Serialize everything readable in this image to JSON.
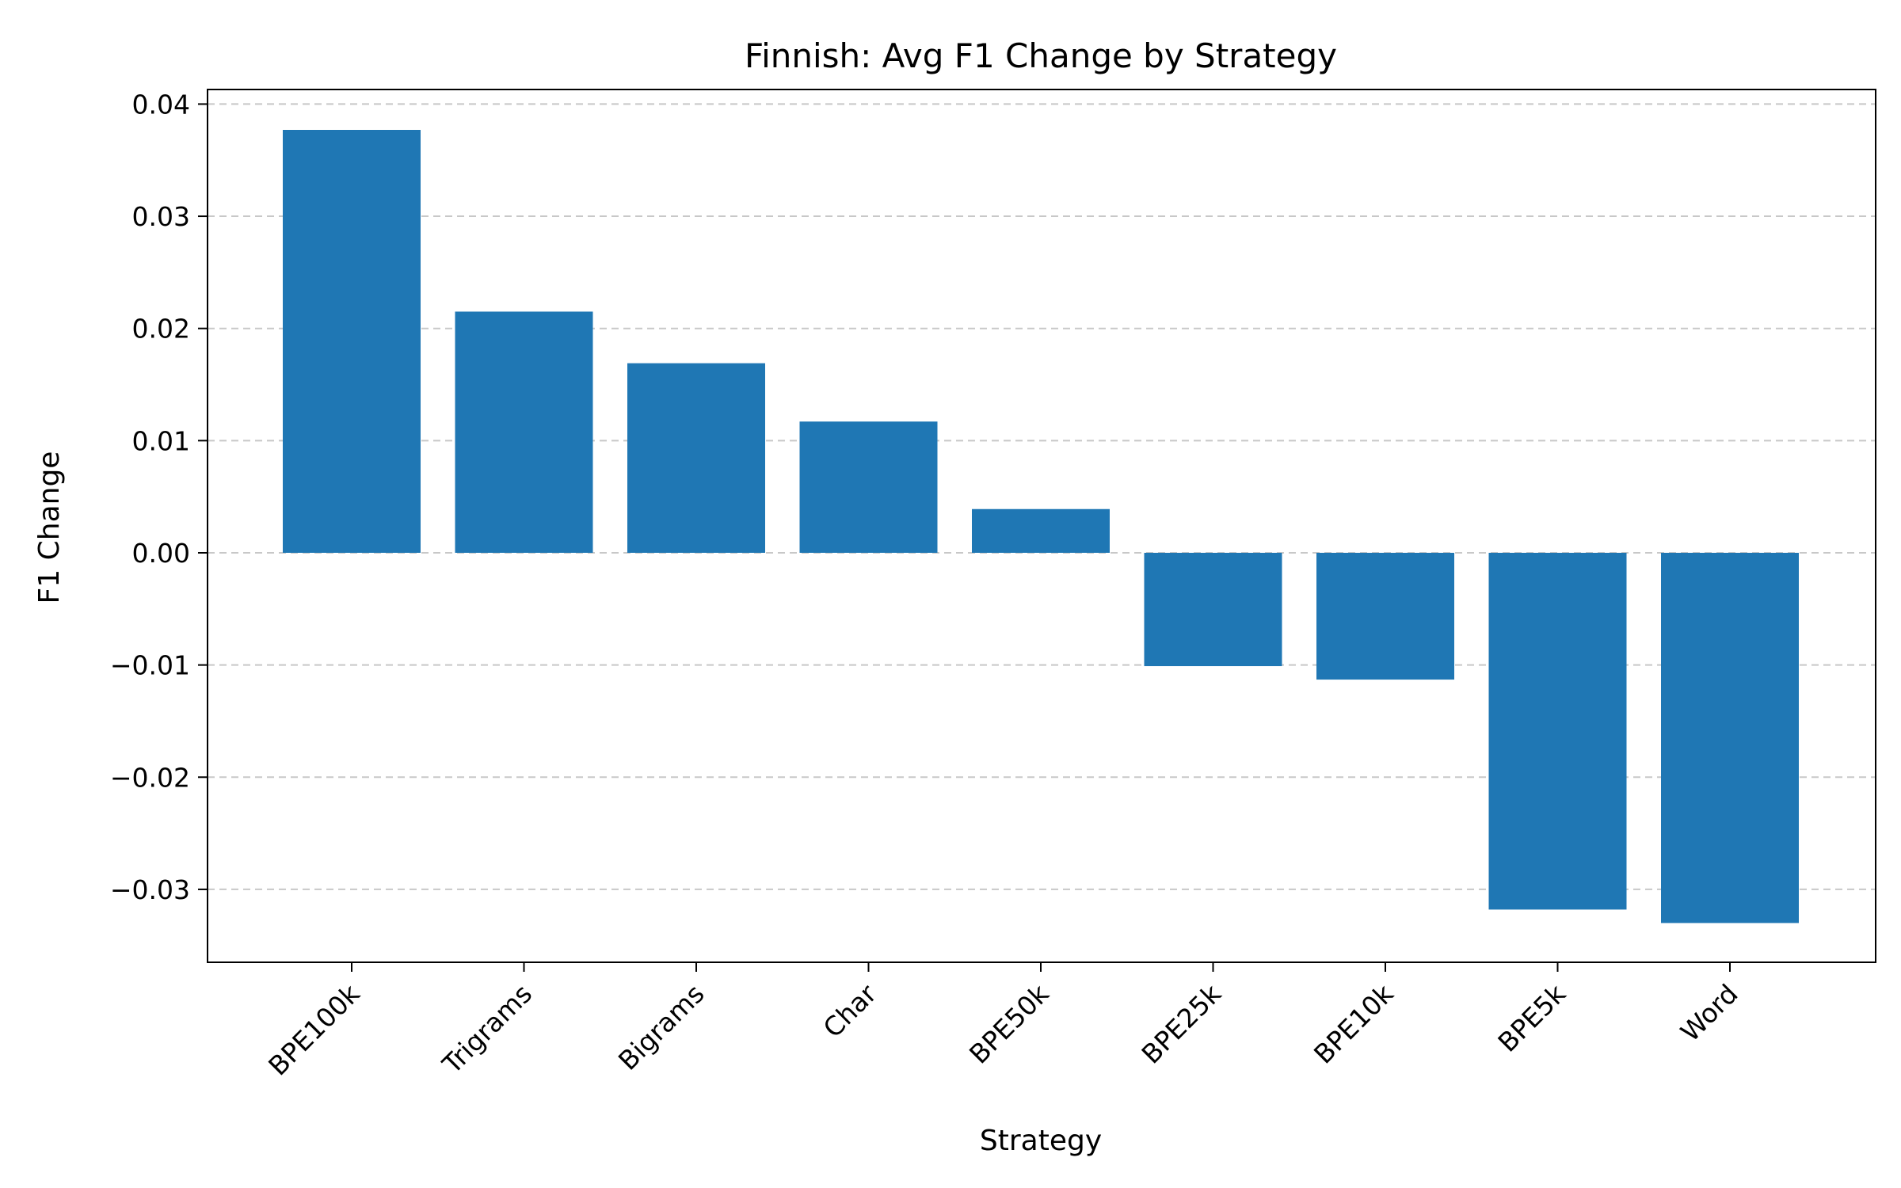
{
  "chart_data": {
    "type": "bar",
    "title": "Finnish: Avg F1 Change by Strategy",
    "xlabel": "Strategy",
    "ylabel": "F1 Change",
    "categories": [
      "BPE100k",
      "Trigrams",
      "Bigrams",
      "Char",
      "BPE50k",
      "BPE25k",
      "BPE10k",
      "BPE5k",
      "Word"
    ],
    "values": [
      0.0377,
      0.0215,
      0.0169,
      0.0117,
      0.0039,
      -0.0101,
      -0.0113,
      -0.0318,
      -0.033
    ],
    "ylim": [
      -0.0365,
      0.0413
    ],
    "yticks": [
      0.04,
      0.03,
      0.02,
      0.01,
      0.0,
      -0.01,
      -0.02,
      -0.03
    ],
    "ytick_labels": [
      "0.04",
      "0.03",
      "0.02",
      "0.01",
      "0.00",
      "−0.01",
      "−0.02",
      "−0.03"
    ],
    "grid": "y-dashed",
    "bar_color": "#1f77b4",
    "grid_color": "#c8c8c8"
  }
}
